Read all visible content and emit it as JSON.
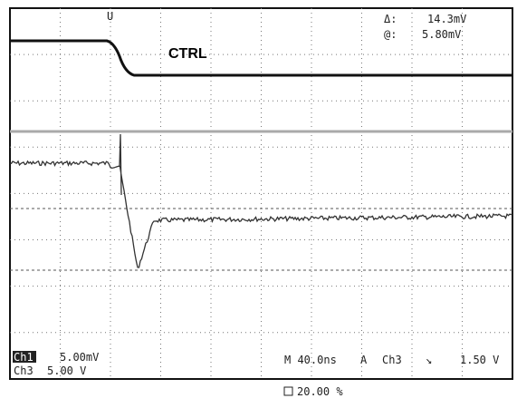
{
  "trigger_marker": "U",
  "cursor": {
    "delta_label": "Δ:",
    "delta_value": "14.3mV",
    "at_label": "@:",
    "at_value": "5.80mV"
  },
  "trace_label": "CTRL",
  "channels": [
    {
      "name": "Ch1",
      "scale": "5.00mV"
    },
    {
      "name": "Ch3",
      "scale": "5.00 V"
    }
  ],
  "timebase": {
    "horizontal": "M 40.0ns",
    "trigger_mode": "A",
    "trigger_source": "Ch3",
    "trigger_slope": "↘",
    "trigger_level": "1.50 V"
  },
  "position": "20.00 %"
}
